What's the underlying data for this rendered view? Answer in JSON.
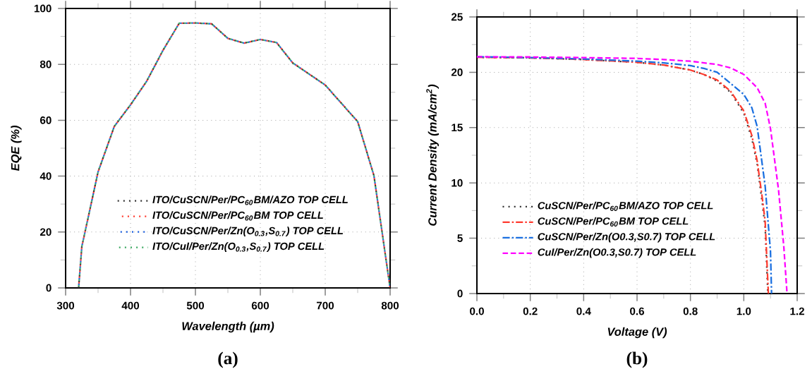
{
  "chart_data": [
    {
      "type": "line",
      "xlabel": "Wavelength (µm)",
      "ylabel": "EQE (%)",
      "x": [
        320,
        325,
        350,
        375,
        400,
        425,
        450,
        475,
        500,
        525,
        550,
        575,
        600,
        625,
        650,
        700,
        750,
        775,
        800
      ],
      "series": [
        {
          "name": "ITO/CuSCN/Per/PC$_{60}$BM/AZO TOP CELL",
          "color": "#333333",
          "line_style": "dotted",
          "values": [
            0,
            14.8,
            41.5,
            57.8,
            65.5,
            74,
            85,
            94.7,
            94.8,
            94.5,
            89.3,
            87.6,
            88.9,
            87.8,
            80.5,
            72.6,
            59.5,
            40.2,
            0
          ]
        },
        {
          "name": "ITO/CuSCN/Per/PC$_{60}$BM TOP CELL",
          "color": "#ff3b2f",
          "line_style": "dotted",
          "values": [
            0,
            14.8,
            41.5,
            57.8,
            65.5,
            74,
            85,
            94.7,
            94.8,
            94.5,
            89.3,
            87.6,
            88.9,
            87.8,
            80.5,
            72.6,
            59.5,
            40.2,
            0
          ]
        },
        {
          "name": "ITO/CuSCN/Per/Zn(O$_{0.3}$,S$_{0.7}$) TOP CELL",
          "color": "#1a5fe0",
          "line_style": "dotted",
          "values": [
            0,
            14.8,
            41.5,
            57.8,
            65.5,
            74,
            85,
            94.7,
            94.8,
            94.5,
            89.3,
            87.6,
            88.9,
            87.8,
            80.5,
            72.6,
            59.5,
            40.2,
            0
          ]
        },
        {
          "name": "ITO/CuI/Per/Zn(O$_{0.3}$,S$_{0.7}$) TOP CELL",
          "color": "#3aa860",
          "line_style": "dotted",
          "values": [
            0,
            14.8,
            41.5,
            57.8,
            65.5,
            74,
            85,
            94.7,
            94.8,
            94.5,
            89.3,
            87.6,
            88.9,
            87.8,
            80.5,
            72.6,
            59.5,
            40.2,
            0
          ]
        }
      ],
      "xlim": [
        300,
        800
      ],
      "xticks": [
        300,
        400,
        500,
        600,
        700,
        800
      ],
      "ylim": [
        0,
        100
      ],
      "yticks": [
        0,
        20,
        40,
        60,
        80,
        100
      ],
      "grid": true,
      "legend": "bottom",
      "annotations": [
        "(a)"
      ]
    },
    {
      "type": "line",
      "xlabel": "Voltage (V)",
      "ylabel": "Current Density (mA/cm$^{2}$)",
      "series": [
        {
          "name": "CuSCN/Per/PC$_{60}$BM/AZO TOP CELL",
          "color": "#333333",
          "line_style": "dotted",
          "x": [
            0,
            0.2,
            0.4,
            0.6,
            0.7,
            0.8,
            0.85,
            0.9,
            0.95,
            1.0,
            1.03,
            1.05,
            1.07,
            1.08,
            1.09
          ],
          "values": [
            21.35,
            21.3,
            21.15,
            20.9,
            20.65,
            20.2,
            19.8,
            19.2,
            18.2,
            16.3,
            14.0,
            11.7,
            8.0,
            6.0,
            0
          ]
        },
        {
          "name": "CuSCN/Per/PC$_{60}$BM TOP CELL",
          "color": "#ff3b2f",
          "line_style": "dashdot",
          "x": [
            0,
            0.2,
            0.4,
            0.6,
            0.7,
            0.8,
            0.85,
            0.9,
            0.95,
            1.0,
            1.03,
            1.05,
            1.07,
            1.08,
            1.092
          ],
          "values": [
            21.35,
            21.3,
            21.15,
            20.9,
            20.65,
            20.2,
            19.8,
            19.3,
            18.3,
            16.5,
            14.3,
            12.0,
            8.5,
            6.5,
            0
          ]
        },
        {
          "name": "CuSCN/Per/Zn(O0.3,S0.7) TOP CELL",
          "color": "#1a6fe0",
          "line_style": "dashdot",
          "x": [
            0,
            0.2,
            0.4,
            0.6,
            0.7,
            0.8,
            0.85,
            0.9,
            0.95,
            1.0,
            1.03,
            1.05,
            1.08,
            1.1,
            1.104
          ],
          "values": [
            21.4,
            21.32,
            21.2,
            21.0,
            20.85,
            20.6,
            20.35,
            20.0,
            19.0,
            18.0,
            16.8,
            15.1,
            9.7,
            3.8,
            0
          ]
        },
        {
          "name": "CuI/Per/Zn(O0.3,S0.7) TOP CELL",
          "color": "#ff00ff",
          "line_style": "dashed",
          "x": [
            0,
            0.2,
            0.4,
            0.6,
            0.7,
            0.8,
            0.9,
            0.95,
            1.0,
            1.05,
            1.08,
            1.1,
            1.13,
            1.15,
            1.162
          ],
          "values": [
            21.4,
            21.38,
            21.32,
            21.25,
            21.15,
            21.0,
            20.7,
            20.4,
            19.8,
            18.6,
            17.2,
            14.9,
            9.4,
            4.2,
            0
          ]
        }
      ],
      "xlim": [
        0,
        1.2
      ],
      "xticks": [
        {
          "value": 0,
          "label": "0.0"
        },
        0.2,
        0.4,
        0.6,
        0.8,
        {
          "value": 1,
          "label": "1.0"
        },
        1.2
      ],
      "ylim": [
        0,
        25
      ],
      "yticks": [
        0,
        5,
        10,
        15,
        20,
        25
      ],
      "grid": true,
      "legend": "bottom left",
      "annotations": [
        "(b)"
      ]
    }
  ]
}
